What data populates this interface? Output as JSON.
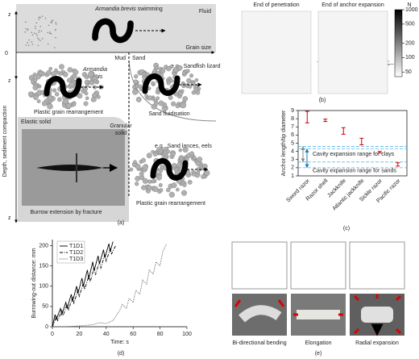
{
  "figure_labels": [
    "(a)",
    "(b)",
    "(c)",
    "(d)",
    "(e)"
  ],
  "diagram_a": {
    "z_labels": [
      "z",
      "z",
      "z"
    ],
    "origin": "0",
    "depth_axis": "Depth, sediment compaction",
    "grain_size_axis": "Grain size",
    "fluid": "Fluid",
    "swimming_species": "Armandia brevis",
    "swimming_suffix": "swimming",
    "mud": "Mud",
    "sand": "Sand",
    "sandfish": "e.g., Sandfish lizard",
    "species_lines": [
      "Armandia",
      "brevis"
    ],
    "plastic_top": "Plastic grain rearrangement",
    "fluidisation": "Sand fluidisation",
    "granular_solid": [
      "Granular",
      "solid"
    ],
    "elastic_solid": "Elastic solid",
    "sand_lances": "e.g., Sand lances, eels",
    "fracture": "Burrow extension by fracture",
    "plastic_bottom": "Plastic grain rearrangement"
  },
  "panel_b": {
    "titles": [
      "End of penetration",
      "End of anchor expansion"
    ],
    "colorbar": {
      "label": "N",
      "log": true,
      "lim": [
        40,
        1000
      ],
      "ticks": [
        1000,
        500,
        200,
        100,
        50
      ]
    }
  },
  "panel_e": {
    "captions": [
      "Bi-directional bending",
      "Elongation",
      "Radial expansion"
    ]
  },
  "chart_data": [
    {
      "type": "errorbar",
      "y_label": "Anchor length/tip diameter",
      "categories": [
        "Sword razor",
        "Razor shell",
        "Jackknife",
        "Atlantic jackknife",
        "Sickle razor",
        "Pacific razor"
      ],
      "values": [
        8.2,
        7.8,
        6.5,
        5.2,
        3.9,
        2.4
      ],
      "errors": [
        0.7,
        0.15,
        0.4,
        0.4,
        0.1,
        0.2
      ],
      "color": "#cc0000",
      "ylim": [
        1,
        9
      ],
      "yticks": [
        1,
        2,
        3,
        4,
        5,
        6,
        7,
        8,
        9
      ],
      "ranges": [
        {
          "name": "Cavity expansion range for clays",
          "color": "#888888",
          "lim": [
            2.7,
            4.6
          ]
        },
        {
          "name": "Cavity expansion range for sands",
          "color": "#1f77b4",
          "lim": [
            2.0,
            4.3
          ]
        }
      ]
    },
    {
      "type": "line",
      "x_label": "Time: s",
      "y_label": "Burrowing-out distance: mm",
      "xlim": [
        0,
        100
      ],
      "xticks": [
        0,
        20,
        40,
        60,
        80,
        100
      ],
      "ylim": [
        0,
        215
      ],
      "yticks": [
        0,
        50,
        100,
        150,
        200
      ],
      "legend": "upper left",
      "series": [
        {
          "name": "T1D1",
          "color": "#000000",
          "style": "solid",
          "x": [
            0,
            2,
            3,
            6,
            7,
            10,
            11,
            14,
            15,
            18,
            19,
            22,
            23,
            26,
            27,
            30,
            31,
            34,
            35,
            38,
            39,
            42,
            43,
            45
          ],
          "values": [
            0,
            30,
            18,
            45,
            30,
            60,
            45,
            80,
            62,
            100,
            82,
            120,
            100,
            140,
            118,
            160,
            138,
            175,
            155,
            190,
            170,
            205,
            185,
            210
          ]
        },
        {
          "name": "T1D2",
          "color": "#000000",
          "style": "dashdot",
          "x": [
            0,
            3,
            4,
            7,
            8,
            11,
            12,
            15,
            16,
            19,
            20,
            23,
            24,
            27,
            28,
            31,
            32,
            35,
            36,
            39,
            40,
            43,
            44,
            47
          ],
          "values": [
            0,
            25,
            15,
            40,
            28,
            55,
            42,
            72,
            58,
            90,
            75,
            108,
            92,
            125,
            110,
            145,
            128,
            160,
            145,
            178,
            162,
            192,
            180,
            200
          ]
        },
        {
          "name": "T1D3",
          "color": "#555555",
          "style": "dotted",
          "x": [
            0,
            10,
            20,
            30,
            35,
            40,
            45,
            48,
            50,
            52,
            55,
            57,
            60,
            62,
            65,
            67,
            70,
            72,
            75,
            77,
            80,
            82,
            85
          ],
          "values": [
            0,
            0,
            2,
            5,
            10,
            8,
            15,
            30,
            40,
            55,
            45,
            70,
            60,
            90,
            80,
            115,
            105,
            140,
            130,
            160,
            150,
            185,
            205
          ]
        }
      ]
    }
  ]
}
